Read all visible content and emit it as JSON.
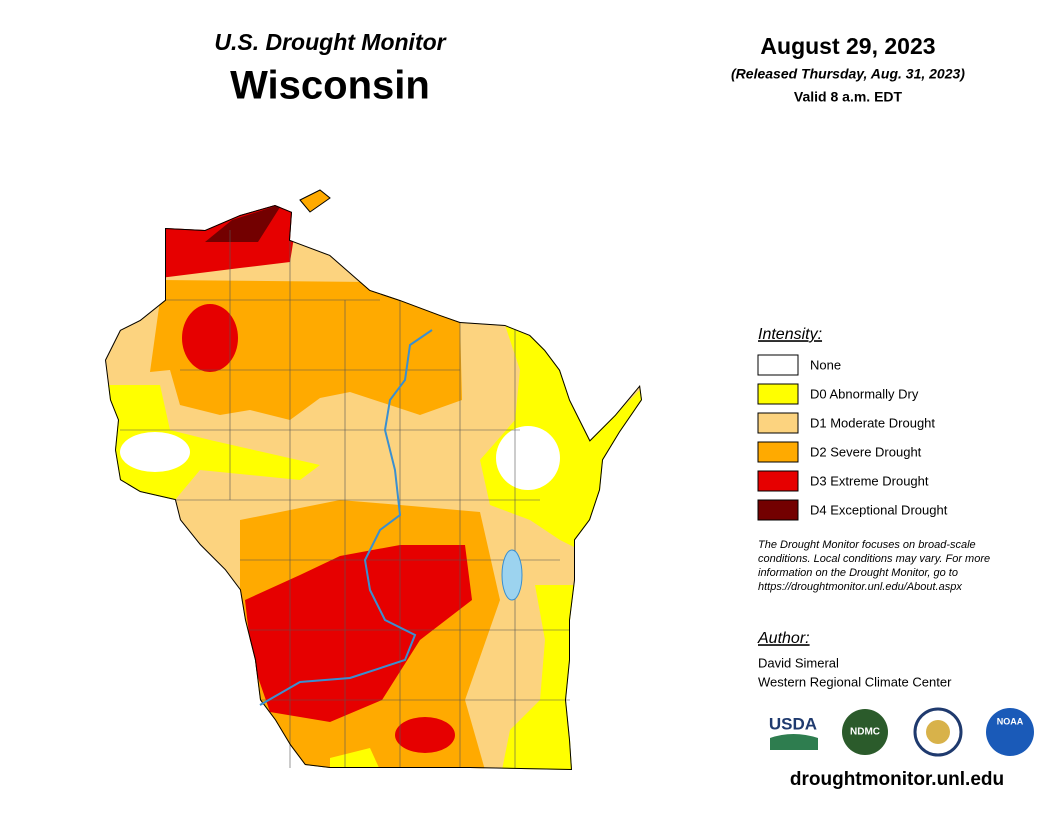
{
  "header": {
    "subtitle": "U.S. Drought Monitor",
    "title": "Wisconsin",
    "date": "August 29, 2023",
    "released": "(Released Thursday, Aug. 31, 2023)",
    "valid": "Valid 8 a.m. EDT"
  },
  "legend": {
    "title": "Intensity:",
    "items": [
      {
        "label": "None",
        "color": "#FFFFFF"
      },
      {
        "label": "D0 Abnormally Dry",
        "color": "#FFFF00"
      },
      {
        "label": "D1 Moderate Drought",
        "color": "#FCD37F"
      },
      {
        "label": "D2 Severe Drought",
        "color": "#FFAA00"
      },
      {
        "label": "D3 Extreme Drought",
        "color": "#E60000"
      },
      {
        "label": "D4 Exceptional Drought",
        "color": "#730000"
      }
    ]
  },
  "note": [
    "The Drought Monitor focuses on broad-scale",
    "conditions. Local conditions may vary. For more",
    "information on the Drought Monitor, go to",
    "https://droughtmonitor.unl.edu/About.aspx"
  ],
  "author": {
    "title": "Author:",
    "lines": [
      "David Simeral",
      "Western Regional Climate Center"
    ]
  },
  "logos": [
    "USDA",
    "NDMC",
    "NOAA"
  ],
  "url": "droughtmonitor.unl.edu"
}
